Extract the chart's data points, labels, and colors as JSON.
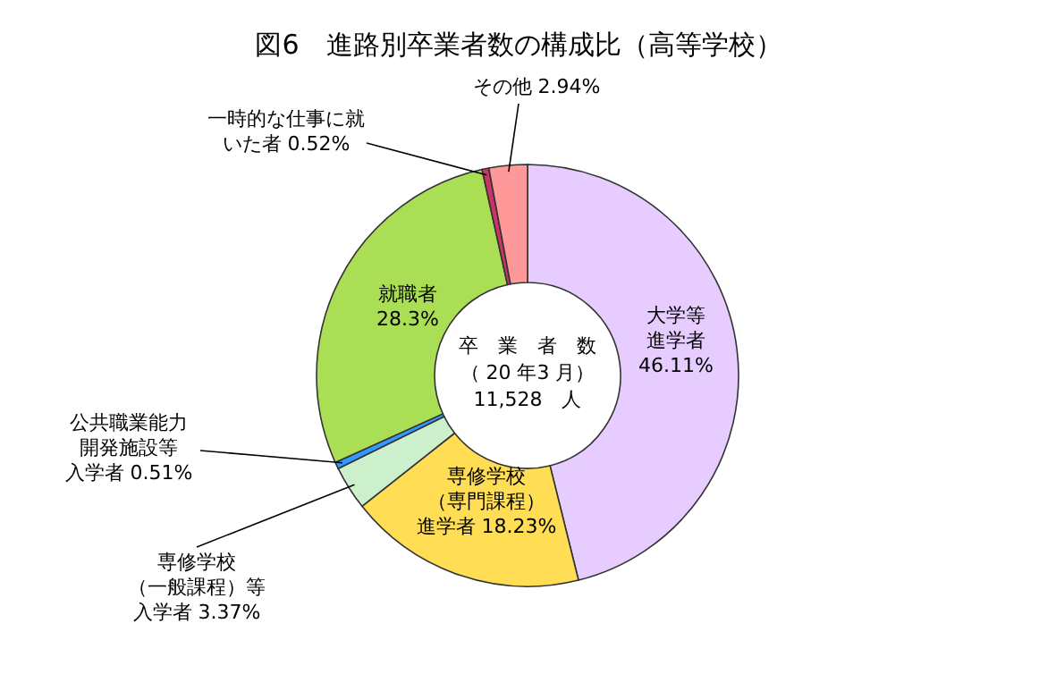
{
  "chart_data": {
    "type": "donut",
    "title": "図6　進路別卒業者数の構成比（高等学校）",
    "categories": [
      "大学等進学者",
      "専修学校（専門課程）進学者",
      "専修学校（一般課程）等入学者",
      "公共職業能力開発施設等入学者",
      "就職者",
      "一時的な仕事に就いた者",
      "その他"
    ],
    "values": [
      46.11,
      18.23,
      3.37,
      0.51,
      28.3,
      0.52,
      2.94
    ],
    "value_labels": [
      "46.11%",
      "18.23%",
      "3.37%",
      "0.51%",
      "28.3%",
      "0.52%",
      "2.94%"
    ],
    "colors": [
      "#e6ccff",
      "#ffdd55",
      "#ccf0cc",
      "#3399ff",
      "#aade55",
      "#cc3366",
      "#ff9999"
    ],
    "annotations": [
      "卒　業　者　数",
      "（ 20 年3 月）",
      "11,528　人"
    ]
  }
}
